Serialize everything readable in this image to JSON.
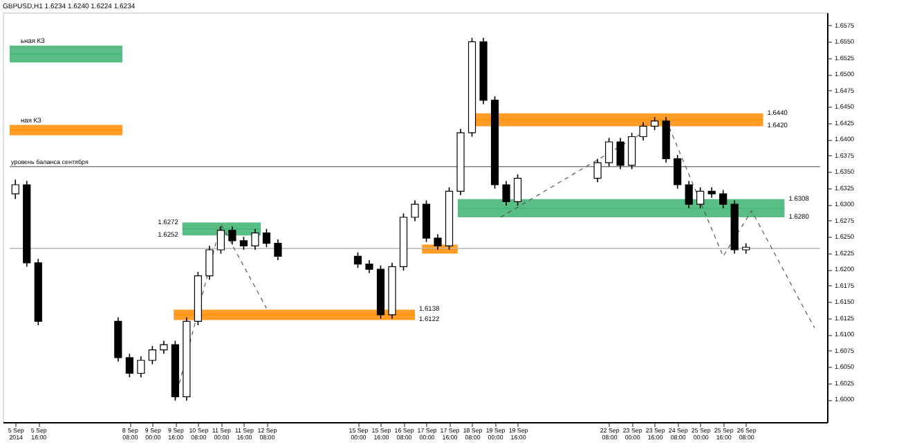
{
  "chart_data": {
    "type": "candlestick",
    "title": "GBPUSD,H1 1.6234 1.6240 1.6224 1.6234",
    "color": "#000000",
    "x": [
      "2014-09-05T00:00",
      "2014-09-05T08:00",
      "2014-09-05T16:00",
      "2014-09-08T00:00",
      "2014-09-08T08:00",
      "2014-09-08T16:00",
      "2014-09-09T00:00",
      "2014-09-09T08:00",
      "2014-09-09T16:00",
      "2014-09-10T00:00",
      "2014-09-10T08:00",
      "2014-09-10T16:00",
      "2014-09-11T00:00",
      "2014-09-11T08:00",
      "2014-09-11T16:00",
      "2014-09-12T00:00",
      "2014-09-12T08:00",
      "2014-09-12T16:00",
      "2014-09-15T00:00",
      "2014-09-15T08:00",
      "2014-09-15T16:00",
      "2014-09-16T00:00",
      "2014-09-16T08:00",
      "2014-09-16T16:00",
      "2014-09-17T00:00",
      "2014-09-17T08:00",
      "2014-09-17T16:00",
      "2014-09-18T00:00",
      "2014-09-18T08:00",
      "2014-09-18T16:00",
      "2014-09-19T00:00",
      "2014-09-19T08:00",
      "2014-09-19T16:00",
      "2014-09-22T00:00",
      "2014-09-22T08:00",
      "2014-09-22T16:00",
      "2014-09-23T00:00",
      "2014-09-23T08:00",
      "2014-09-23T16:00",
      "2014-09-24T00:00",
      "2014-09-24T08:00",
      "2014-09-24T16:00",
      "2014-09-25T00:00",
      "2014-09-25T08:00",
      "2014-09-25T16:00",
      "2014-09-26T00:00",
      "2014-09-26T08:00"
    ],
    "ohlc": [
      [
        1.6316,
        1.6338,
        1.6308,
        1.633
      ],
      [
        1.633,
        1.6336,
        1.6204,
        1.621
      ],
      [
        1.621,
        1.6216,
        1.6114,
        1.612
      ],
      [
        1.612,
        1.6126,
        1.6058,
        1.6064
      ],
      [
        1.6064,
        1.607,
        1.6034,
        1.604
      ],
      [
        1.604,
        1.6066,
        1.6034,
        1.606
      ],
      [
        1.606,
        1.6082,
        1.6054,
        1.6076
      ],
      [
        1.6076,
        1.609,
        1.607,
        1.6084
      ],
      [
        1.6084,
        1.609,
        1.5998,
        1.6004
      ],
      [
        1.6004,
        1.6126,
        1.5998,
        1.612
      ],
      [
        1.612,
        1.6196,
        1.6114,
        1.619
      ],
      [
        1.619,
        1.6236,
        1.6184,
        1.623
      ],
      [
        1.623,
        1.6266,
        1.6224,
        1.626
      ],
      [
        1.626,
        1.6266,
        1.6238,
        1.6244
      ],
      [
        1.6244,
        1.625,
        1.623,
        1.6236
      ],
      [
        1.6236,
        1.6262,
        1.623,
        1.6256
      ],
      [
        1.6256,
        1.6262,
        1.6234,
        1.624
      ],
      [
        1.624,
        1.6246,
        1.6214,
        1.622
      ],
      [
        1.622,
        1.6226,
        1.6202,
        1.6208
      ],
      [
        1.6208,
        1.6214,
        1.6194,
        1.62
      ],
      [
        1.62,
        1.6206,
        1.6124,
        1.613
      ],
      [
        1.613,
        1.621,
        1.6124,
        1.6204
      ],
      [
        1.6204,
        1.6286,
        1.6198,
        1.628
      ],
      [
        1.628,
        1.6306,
        1.6274,
        1.63
      ],
      [
        1.63,
        1.6306,
        1.6242,
        1.6248
      ],
      [
        1.6248,
        1.6254,
        1.623,
        1.6236
      ],
      [
        1.6236,
        1.6326,
        1.623,
        1.632
      ],
      [
        1.632,
        1.6416,
        1.6314,
        1.641
      ],
      [
        1.641,
        1.6556,
        1.6404,
        1.655
      ],
      [
        1.655,
        1.6556,
        1.6454,
        1.646
      ],
      [
        1.646,
        1.6466,
        1.6324,
        1.633
      ],
      [
        1.633,
        1.6336,
        1.6298,
        1.6304
      ],
      [
        1.6304,
        1.6346,
        1.6298,
        1.634
      ],
      [
        1.634,
        1.637,
        1.6334,
        1.6364
      ],
      [
        1.6364,
        1.6402,
        1.6358,
        1.6396
      ],
      [
        1.6396,
        1.6402,
        1.6354,
        1.636
      ],
      [
        1.636,
        1.641,
        1.6354,
        1.6404
      ],
      [
        1.6404,
        1.6426,
        1.6398,
        1.642
      ],
      [
        1.642,
        1.6434,
        1.6414,
        1.6428
      ],
      [
        1.6428,
        1.6434,
        1.6364,
        1.637
      ],
      [
        1.637,
        1.6376,
        1.6324,
        1.633
      ],
      [
        1.633,
        1.6336,
        1.6294,
        1.63
      ],
      [
        1.63,
        1.6326,
        1.6294,
        1.632
      ],
      [
        1.632,
        1.6326,
        1.631,
        1.6316
      ],
      [
        1.6316,
        1.6322,
        1.6294,
        1.63
      ],
      [
        1.63,
        1.6306,
        1.6224,
        1.623
      ],
      [
        1.623,
        1.624,
        1.6224,
        1.6234
      ]
    ],
    "series": [
      {
        "type": "line",
        "color": "#3cb371",
        "x": [
          "2014-09-04T20:00",
          "2014-09-08T03:00"
        ],
        "values": [
          1.6531,
          1.6531
        ],
        "lower": [
          1.6518,
          1.6518
        ],
        "upper": [
          1.6544,
          1.6544
        ]
      },
      {
        "type": "line",
        "color": "#ff8c00",
        "x": [
          "2014-09-04T20:00",
          "2014-09-08T03:00"
        ],
        "values": [
          1.6414,
          1.6414
        ],
        "lower": [
          1.6406,
          1.6406
        ],
        "upper": [
          1.6422,
          1.6422
        ]
      },
      {
        "type": "line",
        "color": "#ff8c00",
        "x": [
          "2014-09-09T15:00",
          "2014-09-16T16:00"
        ],
        "values": [
          1.613,
          1.613
        ],
        "lower": [
          1.6122,
          1.6122
        ],
        "upper": [
          1.6138,
          1.6138
        ]
      },
      {
        "type": "line",
        "color": "#3cb371",
        "x": [
          "2014-09-09T21:00",
          "2014-09-12T04:00"
        ],
        "values": [
          1.6262,
          1.6262
        ],
        "lower": [
          1.6252,
          1.6252
        ],
        "upper": [
          1.6272,
          1.6272
        ]
      },
      {
        "type": "line",
        "color": "#ff8c00",
        "x": [
          "2014-09-16T21:00",
          "2014-09-17T22:00"
        ],
        "values": [
          1.6231,
          1.6231
        ],
        "lower": [
          1.6224,
          1.6224
        ],
        "upper": [
          1.6238,
          1.6238
        ]
      },
      {
        "type": "line",
        "color": "#3cb371",
        "x": [
          "2014-09-17T22:00",
          "2014-09-27T11:00"
        ],
        "values": [
          1.6294,
          1.6294
        ],
        "lower": [
          1.628,
          1.628
        ],
        "upper": [
          1.6308,
          1.6308
        ]
      },
      {
        "type": "line",
        "color": "#ff8c00",
        "x": [
          "2014-09-18T10:00",
          "2014-09-26T20:00"
        ],
        "values": [
          1.643,
          1.643
        ],
        "lower": [
          1.642,
          1.642
        ],
        "upper": [
          1.644,
          1.644
        ]
      },
      {
        "type": "line",
        "color": "#555555",
        "line_style": "dashed",
        "x": [
          "2014-09-24T00:00",
          "2014-09-25T16:00",
          "2014-09-26T12:00",
          "2014-09-28T08:00"
        ],
        "values": [
          1.643,
          1.622,
          1.629,
          1.611
        ]
      },
      {
        "type": "line",
        "color": "#555555",
        "line_style": "dashed",
        "x": [
          "2014-09-09T16:00",
          "2014-09-11T00:00",
          "2014-09-12T08:00"
        ],
        "values": [
          1.6,
          1.627,
          1.614
        ]
      },
      {
        "type": "line",
        "color": "#555555",
        "line_style": "dashed",
        "x": [
          "2014-09-19T04:00",
          "2014-09-23T08:00"
        ],
        "values": [
          1.628,
          1.641
        ]
      }
    ],
    "ref_lines": [
      {
        "axis": "y",
        "value": 1.6358,
        "label": "уровень баланса сентября",
        "color": "#808080"
      },
      {
        "axis": "y",
        "value": 1.6232,
        "color": "#c0c0c0"
      }
    ],
    "annotations": [
      {
        "text": "ьная КЗ",
        "x": "2014-09-04T20:00",
        "y": 1.6544
      },
      {
        "text": "ная КЗ",
        "x": "2014-09-04T20:00",
        "y": 1.6422
      },
      {
        "text": "1.6272",
        "x": "2014-09-09T21:00",
        "y": 1.6272
      },
      {
        "text": "1.6252",
        "x": "2014-09-09T21:00",
        "y": 1.6252
      },
      {
        "text": "1.6138",
        "x": "2014-09-16T16:00",
        "y": 1.6138
      },
      {
        "text": "1.6122",
        "x": "2014-09-16T16:00",
        "y": 1.6122
      },
      {
        "text": "1.6308",
        "x": "2014-09-27T11:00",
        "y": 1.6308
      },
      {
        "text": "1.6280",
        "x": "2014-09-27T11:00",
        "y": 1.628
      },
      {
        "text": "1.6440",
        "x": "2014-09-26T20:00",
        "y": 1.644
      },
      {
        "text": "1.6420",
        "x": "2014-09-26T20:00",
        "y": 1.642
      }
    ],
    "xlim": [
      "2014-09-04T20:00",
      "2014-09-28T12:00"
    ],
    "xticks": [
      {
        "value": "2014-09-05T00:00",
        "label": "5 Sep 2014"
      },
      {
        "value": "2014-09-05T16:00",
        "label": "5 Sep 16:00"
      },
      {
        "value": "2014-09-08T08:00",
        "label": "8 Sep 08:00"
      },
      {
        "value": "2014-09-09T00:00",
        "label": "9 Sep 00:00"
      },
      {
        "value": "2014-09-09T16:00",
        "label": "9 Sep 16:00"
      },
      {
        "value": "2014-09-10T08:00",
        "label": "10 Sep 08:00"
      },
      {
        "value": "2014-09-11T00:00",
        "label": "11 Sep 00:00"
      },
      {
        "value": "2014-09-11T16:00",
        "label": "11 Sep 16:00"
      },
      {
        "value": "2014-09-12T08:00",
        "label": "12 Sep 08:00"
      },
      {
        "value": "2014-09-15T00:00",
        "label": "15 Sep 00:00"
      },
      {
        "value": "2014-09-15T16:00",
        "label": "15 Sep 16:00"
      },
      {
        "value": "2014-09-16T08:00",
        "label": "16 Sep 08:00"
      },
      {
        "value": "2014-09-17T00:00",
        "label": "17 Sep 00:00"
      },
      {
        "value": "2014-09-17T16:00",
        "label": "17 Sep 16:00"
      },
      {
        "value": "2014-09-18T08:00",
        "label": "18 Sep 08:00"
      },
      {
        "value": "2014-09-19T00:00",
        "label": "19 Sep 00:00"
      },
      {
        "value": "2014-09-19T16:00",
        "label": "19 Sep 16:00"
      },
      {
        "value": "2014-09-22T08:00",
        "label": "22 Sep 08:00"
      },
      {
        "value": "2014-09-23T00:00",
        "label": "23 Sep 00:00"
      },
      {
        "value": "2014-09-23T16:00",
        "label": "23 Sep 16:00"
      },
      {
        "value": "2014-09-24T08:00",
        "label": "24 Sep 08:00"
      },
      {
        "value": "2014-09-25T00:00",
        "label": "25 Sep 00:00"
      },
      {
        "value": "2014-09-25T16:00",
        "label": "25 Sep 16:00"
      },
      {
        "value": "2014-09-26T08:00",
        "label": "26 Sep 08:00"
      }
    ],
    "ylim": [
      1.5965,
      1.6595
    ],
    "yticks": [
      {
        "value": 1.6,
        "label": "1.6000"
      },
      1.6025,
      {
        "value": 1.605,
        "label": "1.6050"
      },
      1.6075,
      {
        "value": 1.61,
        "label": "1.6100"
      },
      1.6125,
      {
        "value": 1.615,
        "label": "1.6150"
      },
      1.6175,
      {
        "value": 1.62,
        "label": "1.6200"
      },
      1.6225,
      {
        "value": 1.625,
        "label": "1.6250"
      },
      1.6275,
      {
        "value": 1.63,
        "label": "1.6300"
      },
      1.6325,
      {
        "value": 1.635,
        "label": "1.6350"
      },
      1.6375,
      {
        "value": 1.64,
        "label": "1.6400"
      },
      1.6425,
      {
        "value": 1.645,
        "label": "1.6450"
      },
      1.6475,
      {
        "value": 1.65,
        "label": "1.6500"
      },
      1.6525,
      {
        "value": 1.655,
        "label": "1.6550"
      },
      1.6575
    ],
    "grid": false,
    "marker": "none"
  }
}
